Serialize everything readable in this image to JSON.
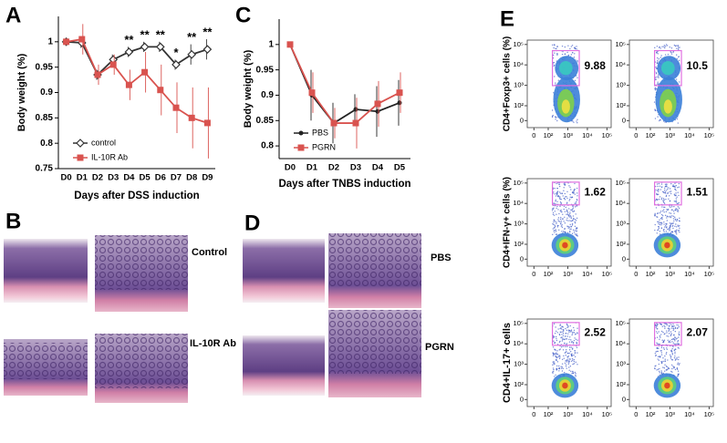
{
  "chart_data": [
    {
      "type": "line",
      "panel": "A",
      "x_label": "Days after DSS induction",
      "y_label": "Body weight (%)",
      "categories": [
        "D0",
        "D1",
        "D2",
        "D3",
        "D4",
        "D5",
        "D6",
        "D7",
        "D8",
        "D9"
      ],
      "ylim": [
        0.75,
        1.05
      ],
      "yticks": [
        0.75,
        0.8,
        0.85,
        0.9,
        0.95,
        1
      ],
      "legend": "lower left",
      "series": [
        {
          "name": "control",
          "color": "#333333",
          "marker": "diamond",
          "values": [
            1,
            0.998,
            0.935,
            0.965,
            0.98,
            0.99,
            0.99,
            0.955,
            0.975,
            0.985
          ],
          "errors": [
            0,
            0.01,
            0.01,
            0.01,
            0.01,
            0.01,
            0.01,
            0.01,
            0.02,
            0.02
          ]
        },
        {
          "name": "IL-10R Ab",
          "color": "#d9534f",
          "marker": "square",
          "values": [
            1,
            1.005,
            0.935,
            0.955,
            0.915,
            0.94,
            0.905,
            0.87,
            0.85,
            0.84
          ],
          "errors": [
            0,
            0.03,
            0.02,
            0.02,
            0.03,
            0.04,
            0.05,
            0.05,
            0.06,
            0.07
          ]
        }
      ],
      "annotations": [
        {
          "category": "D4",
          "text": "**"
        },
        {
          "category": "D5",
          "text": "**"
        },
        {
          "category": "D6",
          "text": "**"
        },
        {
          "category": "D7",
          "text": "*"
        },
        {
          "category": "D8",
          "text": "**"
        },
        {
          "category": "D9",
          "text": "**"
        }
      ]
    },
    {
      "type": "line",
      "panel": "C",
      "x_label": "Days after TNBS induction",
      "y_label": "Body weight (%)",
      "categories": [
        "D0",
        "D1",
        "D2",
        "D3",
        "D4",
        "D5"
      ],
      "ylim": [
        0.775,
        1.05
      ],
      "yticks": [
        0.8,
        0.85,
        0.9,
        0.95,
        1
      ],
      "legend": "lower left",
      "series": [
        {
          "name": "PBS",
          "color": "#222222",
          "marker": "dot",
          "values": [
            1,
            0.9,
            0.845,
            0.872,
            0.868,
            0.885
          ],
          "errors": [
            0,
            0.05,
            0.04,
            0.03,
            0.05,
            0.045
          ]
        },
        {
          "name": "PGRN",
          "color": "#d9534f",
          "marker": "square",
          "values": [
            1,
            0.905,
            0.845,
            0.845,
            0.883,
            0.905
          ],
          "errors": [
            0,
            0.04,
            0.03,
            0.05,
            0.045,
            0.04
          ]
        }
      ],
      "annotations": []
    }
  ],
  "histology": [
    {
      "panel": "B",
      "labels": [
        "Control",
        "IL-10R Ab"
      ]
    },
    {
      "panel": "D",
      "labels": [
        "PBS",
        "PGRN"
      ]
    }
  ],
  "flow": {
    "panel": "E",
    "xticks": [
      0,
      {
        "value": 100,
        "label": "10²"
      },
      {
        "value": 1000,
        "label": "10³"
      },
      {
        "value": 10000,
        "label": "10⁴"
      },
      {
        "value": 100000,
        "label": "10⁵"
      }
    ],
    "yticks": [
      0,
      {
        "value": 100,
        "label": "10²"
      },
      {
        "value": 1000,
        "label": "10³"
      },
      {
        "value": 10000,
        "label": "10⁴"
      },
      {
        "value": 100000,
        "label": "10⁵"
      }
    ],
    "rows": [
      {
        "y_label": "CD4+Foxp3+ cells (%)",
        "gates": [
          9.88,
          10.5
        ]
      },
      {
        "y_label": "CD4+IFN-γ+ cells (%)",
        "gates": [
          1.62,
          1.51
        ]
      },
      {
        "y_label": "CD4+IL-17+ cells",
        "gates": [
          2.52,
          2.07
        ]
      }
    ]
  }
}
